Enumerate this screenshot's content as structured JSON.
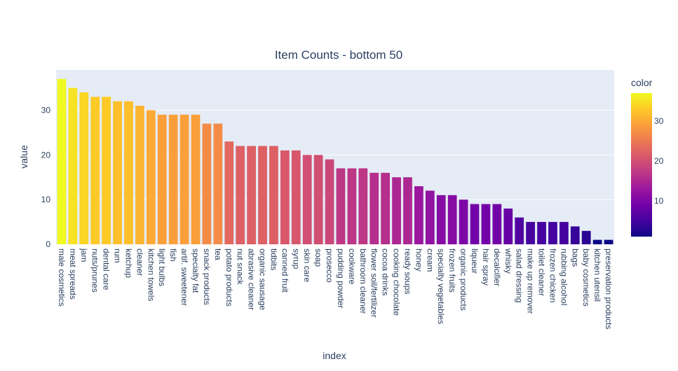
{
  "chart_data": {
    "type": "bar",
    "title": "Item Counts - bottom 50",
    "xlabel": "index",
    "ylabel": "value",
    "ylim": [
      0,
      39
    ],
    "yticks": [
      0,
      10,
      20,
      30
    ],
    "grid": true,
    "colorbar": {
      "title": "color",
      "range": [
        1,
        37
      ],
      "ticks": [
        10,
        20,
        30
      ]
    },
    "categories": [
      "male cosmetics",
      "meat spreads",
      "jam",
      "nuts/prunes",
      "dental care",
      "rum",
      "ketchup",
      "cleaner",
      "kitchen towels",
      "light bulbs",
      "fish",
      "artif. sweetener",
      "specialty fat",
      "snack products",
      "tea",
      "potato products",
      "nut snack",
      "abrasive cleaner",
      "organic sausage",
      "tidbits",
      "canned fruit",
      "syrup",
      "skin care",
      "soap",
      "prosecco",
      "pudding powder",
      "cookware",
      "bathroom cleaner",
      "flower soil/fertilizer",
      "cocoa drinks",
      "cooking chocolate",
      "ready soups",
      "honey",
      "cream",
      "specialty vegetables",
      "frozen fruits",
      "organic products",
      "liqueur",
      "hair spray",
      "decalcifier",
      "whisky",
      "salad dressing",
      "make up remover",
      "toilet cleaner",
      "frozen chicken",
      "rubbing alcohol",
      "bags",
      "baby cosmetics",
      "kitchen utensil",
      "preservation products"
    ],
    "values": [
      37,
      35,
      34,
      33,
      33,
      32,
      32,
      31,
      30,
      29,
      29,
      29,
      29,
      27,
      27,
      23,
      22,
      22,
      22,
      22,
      21,
      21,
      20,
      20,
      19,
      17,
      17,
      17,
      16,
      16,
      15,
      15,
      13,
      12,
      11,
      11,
      10,
      9,
      9,
      9,
      8,
      6,
      5,
      5,
      5,
      5,
      4,
      3,
      1,
      1
    ]
  }
}
